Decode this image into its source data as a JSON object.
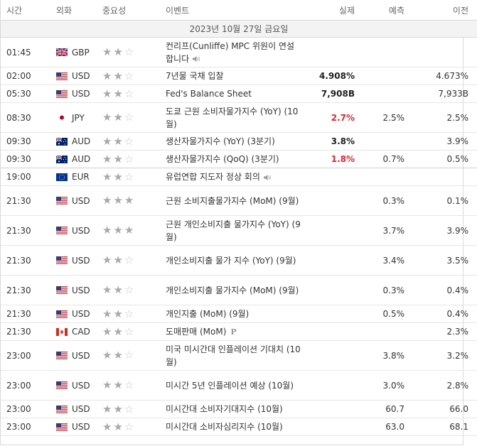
{
  "headers": {
    "time": "시간",
    "currency": "외화",
    "importance": "중요성",
    "event": "이벤트",
    "actual": "실제",
    "forecast": "예측",
    "previous": "이전"
  },
  "date_label": "2023년 10월 27일 금요일",
  "rows": [
    {
      "time": "01:45",
      "cur": "GBP",
      "flag": "gb",
      "stars": 2,
      "event": "컨리프(Cunliffe) MPC 위원이 연설합니다",
      "speech": true,
      "actual": "",
      "actual_color": "",
      "forecast": "",
      "previous": "",
      "h": 42
    },
    {
      "time": "02:00",
      "cur": "USD",
      "flag": "us",
      "stars": 2,
      "event": "7년물 국채 입찰",
      "actual": "4.908%",
      "actual_color": "black",
      "forecast": "",
      "previous": "4.673%",
      "h": 25
    },
    {
      "time": "05:30",
      "cur": "USD",
      "flag": "us",
      "stars": 2,
      "event": "Fed's Balance Sheet",
      "actual": "7,908B",
      "actual_color": "black",
      "forecast": "",
      "previous": "7,933B",
      "h": 25
    },
    {
      "time": "08:30",
      "cur": "JPY",
      "flag": "jp",
      "stars": 2,
      "event": "도쿄 근원 소비자물가지수 (YoY) (10월)",
      "actual": "2.7%",
      "actual_color": "red",
      "forecast": "2.5%",
      "previous": "2.5%",
      "h": 42
    },
    {
      "time": "09:30",
      "cur": "AUD",
      "flag": "au",
      "stars": 2,
      "event": "생산자물가지수 (YoY) (3분기)",
      "actual": "3.8%",
      "actual_color": "black",
      "forecast": "",
      "previous": "3.9%",
      "h": 25
    },
    {
      "time": "09:30",
      "cur": "AUD",
      "flag": "au",
      "stars": 2,
      "event": "생산자물가지수 (QoQ) (3분기)",
      "actual": "1.8%",
      "actual_color": "red",
      "forecast": "0.7%",
      "previous": "0.5%",
      "h": 25,
      "sep": true
    },
    {
      "time": "19:00",
      "cur": "EUR",
      "flag": "eu",
      "stars": 2,
      "event": "유럽연합 지도자 정상 회의",
      "speech": true,
      "actual": "",
      "actual_color": "",
      "forecast": "",
      "previous": "",
      "h": 25
    },
    {
      "time": "21:30",
      "cur": "USD",
      "flag": "us",
      "stars": 3,
      "event": "근원 소비지출물가지수 (MoM) (9월)",
      "actual": "",
      "actual_color": "",
      "forecast": "0.3%",
      "previous": "0.1%",
      "h": 42
    },
    {
      "time": "21:30",
      "cur": "USD",
      "flag": "us",
      "stars": 3,
      "event": "근원 개인소비지출 물가지수 (YoY) (9월)",
      "actual": "",
      "actual_color": "",
      "forecast": "3.7%",
      "previous": "3.9%",
      "h": 42
    },
    {
      "time": "21:30",
      "cur": "USD",
      "flag": "us",
      "stars": 2,
      "event": "개인소비지출 물가 지수 (YoY) (9월)",
      "actual": "",
      "actual_color": "",
      "forecast": "3.4%",
      "previous": "3.5%",
      "h": 42
    },
    {
      "time": "21:30",
      "cur": "USD",
      "flag": "us",
      "stars": 2,
      "event": "개인소비지출 물가지수 (MoM) (9월)",
      "actual": "",
      "actual_color": "",
      "forecast": "0.3%",
      "previous": "0.4%",
      "h": 42
    },
    {
      "time": "21:30",
      "cur": "USD",
      "flag": "us",
      "stars": 2,
      "event": "개인지출 (MoM) (9월)",
      "actual": "",
      "actual_color": "",
      "forecast": "0.5%",
      "previous": "0.4%",
      "h": 25
    },
    {
      "time": "21:30",
      "cur": "CAD",
      "flag": "ca",
      "stars": 2,
      "event": "도매판매 (MoM)",
      "prelim": "P",
      "actual": "",
      "actual_color": "",
      "forecast": "",
      "previous": "2.3%",
      "h": 25
    },
    {
      "time": "23:00",
      "cur": "USD",
      "flag": "us",
      "stars": 2,
      "event": "미국 미시간대 인플레이션 기대치 (10월)",
      "actual": "",
      "actual_color": "",
      "forecast": "3.8%",
      "previous": "3.2%",
      "h": 42
    },
    {
      "time": "23:00",
      "cur": "USD",
      "flag": "us",
      "stars": 2,
      "event": "미시간 5년 인플레이션 예상 (10월)",
      "actual": "",
      "actual_color": "",
      "forecast": "3.0%",
      "previous": "2.8%",
      "h": 42
    },
    {
      "time": "23:00",
      "cur": "USD",
      "flag": "us",
      "stars": 2,
      "event": "미시간대 소비자기대지수 (10월)",
      "actual": "",
      "actual_color": "",
      "forecast": "60.7",
      "previous": "66.0",
      "h": 25
    },
    {
      "time": "23:00",
      "cur": "USD",
      "flag": "us",
      "stars": 2,
      "event": "미시간대 소비자심리지수 (10월)",
      "actual": "",
      "actual_color": "",
      "forecast": "63.0",
      "previous": "68.1",
      "h": 25
    }
  ],
  "colors": {
    "red": "#e5232d",
    "star": "#a9a9a9",
    "star_off": "#c8c8c8"
  },
  "icons": {
    "speech": "speaker-icon",
    "prelim": "preliminary-icon"
  }
}
